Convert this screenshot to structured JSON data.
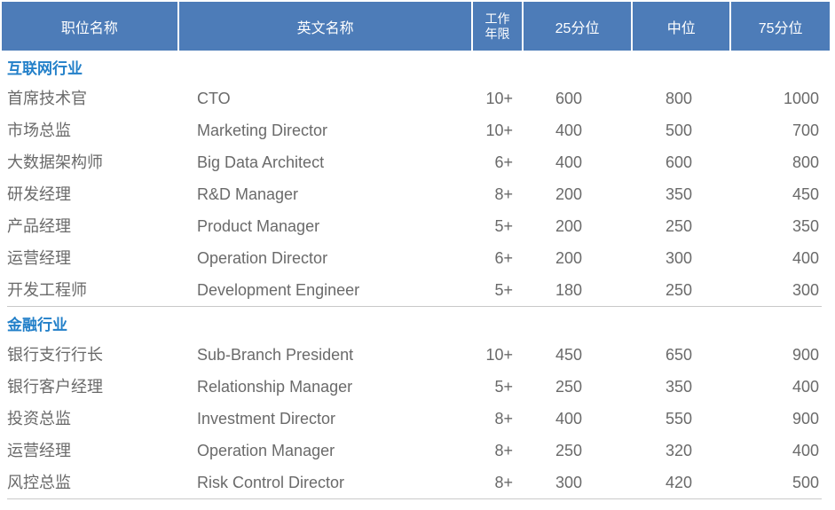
{
  "colors": {
    "header_bg": "#4d7cb8",
    "header_text": "#ffffff",
    "section_text": "#2380c9",
    "body_text": "#6a6a6a",
    "divider": "#c9c9c9"
  },
  "table": {
    "headers": {
      "position": "职位名称",
      "english": "英文名称",
      "experience_line1": "工作",
      "experience_line2": "年限",
      "p25": "25分位",
      "median": "中位",
      "p75": "75分位"
    },
    "sections": [
      {
        "name": "互联网行业",
        "rows": [
          {
            "position": "首席技术官",
            "english": "CTO",
            "experience": "10+",
            "p25": "600",
            "median": "800",
            "p75": "1000"
          },
          {
            "position": "市场总监",
            "english": "Marketing Director",
            "experience": "10+",
            "p25": "400",
            "median": "500",
            "p75": "700"
          },
          {
            "position": "大数据架构师",
            "english": "Big Data Architect",
            "experience": "6+",
            "p25": "400",
            "median": "600",
            "p75": "800"
          },
          {
            "position": "研发经理",
            "english": "R&D Manager",
            "experience": "8+",
            "p25": "200",
            "median": "350",
            "p75": "450"
          },
          {
            "position": "产品经理",
            "english": "Product Manager",
            "experience": "5+",
            "p25": "200",
            "median": "250",
            "p75": "350"
          },
          {
            "position": "运营经理",
            "english": "Operation Director",
            "experience": "6+",
            "p25": "200",
            "median": "300",
            "p75": "400"
          },
          {
            "position": "开发工程师",
            "english": "Development Engineer",
            "experience": "5+",
            "p25": "180",
            "median": "250",
            "p75": "300"
          }
        ]
      },
      {
        "name": "金融行业",
        "rows": [
          {
            "position": "银行支行行长",
            "english": "Sub-Branch President",
            "experience": "10+",
            "p25": "450",
            "median": "650",
            "p75": "900"
          },
          {
            "position": "银行客户经理",
            "english": "Relationship Manager",
            "experience": "5+",
            "p25": "250",
            "median": "350",
            "p75": "400"
          },
          {
            "position": "投资总监",
            "english": "Investment Director",
            "experience": "8+",
            "p25": "400",
            "median": "550",
            "p75": "900"
          },
          {
            "position": "运营经理",
            "english": "Operation Manager",
            "experience": "8+",
            "p25": "250",
            "median": "320",
            "p75": "400"
          },
          {
            "position": "风控总监",
            "english": "Risk Control Director",
            "experience": "8+",
            "p25": "300",
            "median": "420",
            "p75": "500"
          }
        ]
      }
    ]
  }
}
